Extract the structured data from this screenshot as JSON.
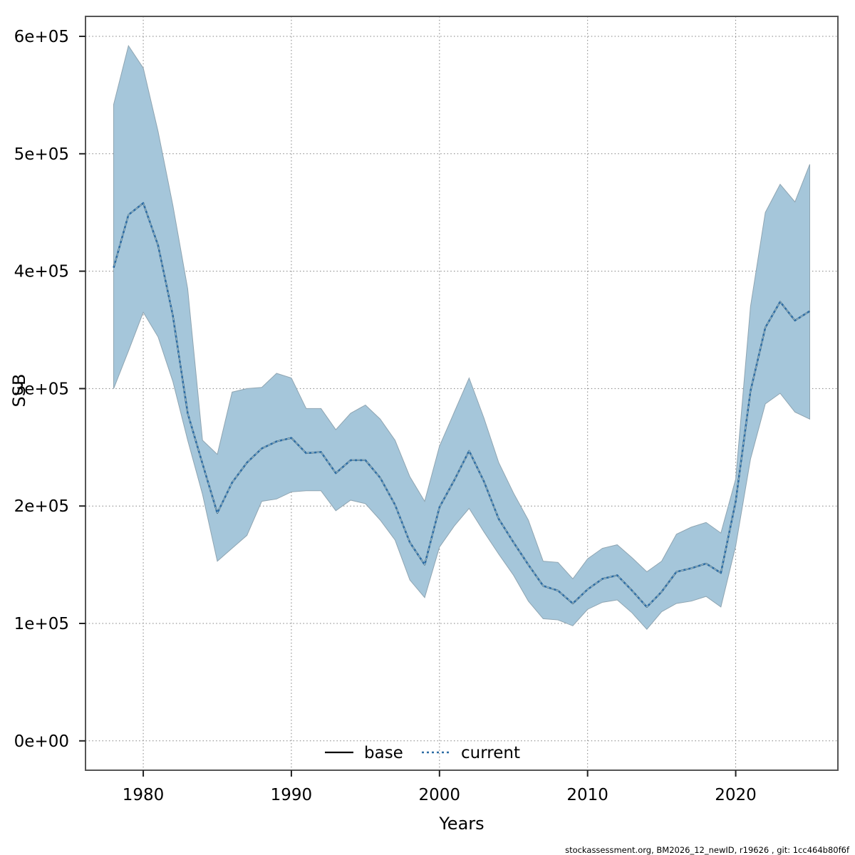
{
  "chart_data": {
    "type": "line",
    "title": "",
    "xlabel": "Years",
    "ylabel": "SSB",
    "x": [
      1978,
      1979,
      1980,
      1981,
      1982,
      1983,
      1984,
      1985,
      1986,
      1987,
      1988,
      1989,
      1990,
      1991,
      1992,
      1993,
      1994,
      1995,
      1996,
      1997,
      1998,
      1999,
      2000,
      2001,
      2002,
      2003,
      2004,
      2005,
      2006,
      2007,
      2008,
      2009,
      2010,
      2011,
      2012,
      2013,
      2014,
      2015,
      2016,
      2017,
      2018,
      2019,
      2020,
      2021,
      2022,
      2023,
      2024,
      2025
    ],
    "series": [
      {
        "name": "base",
        "style": "solid",
        "color": "#000000",
        "values": [
          403000,
          448000,
          458000,
          422000,
          362000,
          279000,
          236000,
          194000,
          220000,
          237000,
          249000,
          255000,
          258000,
          245000,
          246000,
          228000,
          239000,
          239000,
          224000,
          201000,
          169000,
          150000,
          199000,
          222000,
          247000,
          221000,
          189000,
          169000,
          150000,
          132000,
          128000,
          117000,
          129000,
          138000,
          141000,
          128000,
          114000,
          127000,
          144000,
          147000,
          151000,
          143000,
          204000,
          298000,
          352000,
          374000,
          358000,
          366000
        ]
      },
      {
        "name": "current",
        "style": "dotted",
        "color": "#2e6da4",
        "values": [
          403000,
          448000,
          458000,
          422000,
          362000,
          279000,
          236000,
          194000,
          220000,
          237000,
          249000,
          255000,
          258000,
          245000,
          246000,
          228000,
          239000,
          239000,
          224000,
          201000,
          169000,
          150000,
          199000,
          222000,
          247000,
          221000,
          189000,
          169000,
          150000,
          132000,
          128000,
          117000,
          129000,
          138000,
          141000,
          128000,
          114000,
          127000,
          144000,
          147000,
          151000,
          143000,
          204000,
          298000,
          352000,
          374000,
          358000,
          366000
        ]
      }
    ],
    "band": {
      "name": "current-confidence-band",
      "color": "#a5c6da",
      "edge_color": "#8fa5b2",
      "lower": [
        300000,
        332000,
        365000,
        344000,
        306000,
        256000,
        210000,
        153000,
        164000,
        175000,
        204000,
        206000,
        212000,
        213000,
        213000,
        196000,
        205000,
        202000,
        188000,
        171000,
        137000,
        122000,
        165000,
        183000,
        198000,
        178000,
        159000,
        141000,
        119000,
        104000,
        103000,
        98000,
        112000,
        118000,
        120000,
        109000,
        95000,
        110000,
        117000,
        119000,
        123000,
        114000,
        166000,
        240000,
        287000,
        296000,
        280000,
        274000
      ],
      "upper": [
        542000,
        592000,
        573000,
        519000,
        456000,
        385000,
        256000,
        244000,
        297000,
        300000,
        301000,
        313000,
        309000,
        283000,
        283000,
        265000,
        279000,
        286000,
        274000,
        256000,
        225000,
        204000,
        251000,
        280000,
        309000,
        275000,
        237000,
        211000,
        188000,
        153000,
        152000,
        138000,
        155000,
        164000,
        167000,
        156000,
        144000,
        153000,
        176000,
        182000,
        186000,
        177000,
        223000,
        370000,
        450000,
        474000,
        459000,
        491000
      ]
    },
    "xtick_values": [
      1980,
      1990,
      2000,
      2010,
      2020
    ],
    "xtick_labels": [
      "1980",
      "1990",
      "2000",
      "2010",
      "2020"
    ],
    "ytick_values": [
      0,
      100000,
      200000,
      300000,
      400000,
      500000,
      600000
    ],
    "ytick_labels": [
      "0e+00",
      "1e+05",
      "2e+05",
      "3e+05",
      "4e+05",
      "5e+05",
      "6e+05"
    ],
    "xlim": [
      1976.1,
      2026.9
    ],
    "ylim": [
      -25000,
      617000
    ],
    "grid": "dotted",
    "legend_position": "bottom-center",
    "legend": [
      {
        "label": "base"
      },
      {
        "label": "current"
      }
    ]
  },
  "footer": {
    "text": "stockassessment.org, BM2026_12_newID, r19626 , git: 1cc464b80f6f"
  },
  "colors": {
    "band": "#a5c6da",
    "band_edge": "#8fa5b2",
    "base_line": "#000000",
    "current_line": "#2e6da4",
    "current_halo": "#8bbcd9",
    "grid": "#808080",
    "frame": "#555555",
    "tick": "#222222"
  }
}
